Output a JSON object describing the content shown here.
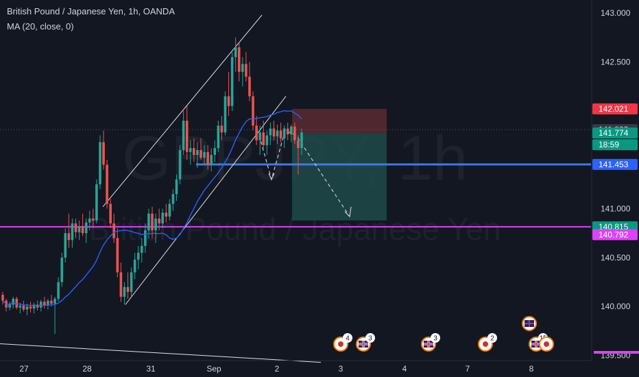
{
  "header": {
    "title": "British Pound / Japanese Yen, 1h, OANDA",
    "indicator": "MA (20, close, 0)"
  },
  "watermark": {
    "symbol": "GBPJPY, 1h",
    "name": "British Pound / Japanese Yen"
  },
  "colors": {
    "background": "#131722",
    "up": "#26a69a",
    "down": "#ef5350",
    "ma": "#2962ff",
    "support_line": "#3d7be0",
    "magenta_line": "#e040fb",
    "target_zone": "#1f4a4a",
    "stop_zone": "#5a2a30",
    "price_badge_blue": "#2962ff",
    "price_badge_red": "#f23645",
    "price_badge_green": "#089981",
    "axis_text": "#d1d4dc"
  },
  "price_axis": {
    "ticks": [
      "143.000",
      "142.500",
      "141.000",
      "140.500",
      "140.000",
      "139.500"
    ]
  },
  "price_badges": {
    "stop": "142.021",
    "last_close": "141.809",
    "current": "141.774",
    "countdown": "18:59",
    "support": "141.453",
    "magenta_upper": "140.815",
    "magenta_lower": "140.792"
  },
  "time_axis": {
    "labels": [
      "27",
      "28",
      "31",
      "Sep",
      "2",
      "3",
      "4",
      "7",
      "8"
    ]
  },
  "event_markers": {
    "counts": [
      "4",
      "3",
      "3",
      "2",
      "15"
    ],
    "icons": [
      "jp-flag-icon",
      "uk-flag-icon",
      "uk-flag-icon",
      "jp-flag-icon",
      "uk-flag-icon"
    ]
  },
  "chart_data": {
    "type": "candlestick",
    "title": "British Pound / Japanese Yen, 1h, OANDA",
    "ylim": [
      139.42,
      143.05
    ],
    "x_labels": [
      "27",
      "28",
      "31",
      "Sep",
      "2",
      "3",
      "4",
      "7",
      "8"
    ],
    "moving_average": {
      "name": "MA (20, close, 0)",
      "period": 20
    },
    "horizontal_levels": [
      141.453,
      140.815,
      140.792
    ],
    "position_tool": {
      "entry": 141.774,
      "stop": 142.021,
      "target": 140.88
    },
    "candles_ohlc": [
      [
        140.12,
        140.15,
        140.02,
        140.06
      ],
      [
        140.06,
        140.08,
        139.95,
        139.99
      ],
      [
        139.99,
        140.05,
        139.96,
        140.02
      ],
      [
        140.02,
        140.1,
        139.98,
        140.08
      ],
      [
        140.08,
        140.1,
        139.97,
        139.99
      ],
      [
        139.99,
        140.04,
        139.93,
        140.01
      ],
      [
        140.01,
        140.06,
        139.95,
        139.97
      ],
      [
        139.97,
        140.03,
        139.91,
        140.0
      ],
      [
        140.0,
        140.05,
        139.94,
        139.98
      ],
      [
        139.98,
        140.04,
        139.93,
        140.02
      ],
      [
        140.02,
        140.06,
        139.96,
        139.99
      ],
      [
        139.99,
        140.07,
        139.95,
        140.05
      ],
      [
        140.05,
        140.1,
        139.98,
        140.01
      ],
      [
        140.01,
        140.08,
        139.97,
        140.06
      ],
      [
        140.06,
        140.12,
        140.0,
        140.03
      ],
      [
        140.03,
        140.1,
        139.72,
        140.08
      ],
      [
        140.08,
        140.3,
        140.05,
        140.25
      ],
      [
        140.25,
        140.55,
        140.2,
        140.5
      ],
      [
        140.5,
        140.8,
        140.45,
        140.75
      ],
      [
        140.75,
        140.95,
        140.6,
        140.68
      ],
      [
        140.68,
        140.9,
        140.6,
        140.85
      ],
      [
        140.85,
        140.9,
        140.7,
        140.76
      ],
      [
        140.76,
        140.88,
        140.68,
        140.82
      ],
      [
        140.82,
        140.95,
        140.72,
        140.75
      ],
      [
        140.75,
        140.9,
        140.65,
        140.86
      ],
      [
        140.86,
        140.98,
        140.78,
        140.9
      ],
      [
        140.9,
        141.0,
        140.8,
        140.88
      ],
      [
        140.88,
        141.3,
        140.85,
        141.25
      ],
      [
        141.25,
        141.75,
        141.2,
        141.68
      ],
      [
        141.68,
        141.8,
        141.4,
        141.45
      ],
      [
        141.45,
        141.5,
        141.0,
        141.05
      ],
      [
        141.05,
        141.1,
        140.8,
        140.85
      ],
      [
        140.85,
        140.95,
        140.65,
        140.7
      ],
      [
        140.7,
        140.8,
        140.3,
        140.35
      ],
      [
        140.35,
        140.45,
        140.05,
        140.1
      ],
      [
        140.1,
        140.25,
        140.02,
        140.2
      ],
      [
        140.2,
        140.35,
        140.08,
        140.15
      ],
      [
        140.15,
        140.4,
        140.1,
        140.35
      ],
      [
        140.35,
        140.55,
        140.28,
        140.48
      ],
      [
        140.48,
        140.62,
        140.38,
        140.55
      ],
      [
        140.55,
        140.7,
        140.45,
        140.62
      ],
      [
        140.62,
        140.85,
        140.55,
        140.78
      ],
      [
        140.78,
        141.0,
        140.7,
        140.95
      ],
      [
        140.95,
        141.02,
        140.7,
        140.78
      ],
      [
        140.78,
        140.95,
        140.65,
        140.9
      ],
      [
        140.9,
        141.0,
        140.78,
        140.85
      ],
      [
        140.85,
        141.0,
        140.8,
        140.96
      ],
      [
        140.96,
        141.05,
        140.86,
        140.92
      ],
      [
        140.92,
        141.1,
        140.88,
        141.05
      ],
      [
        141.05,
        141.2,
        140.98,
        141.15
      ],
      [
        141.15,
        141.35,
        141.08,
        141.3
      ],
      [
        141.3,
        141.65,
        141.25,
        141.6
      ],
      [
        141.6,
        142.0,
        141.55,
        141.9
      ],
      [
        141.9,
        142.05,
        141.5,
        141.58
      ],
      [
        141.58,
        141.7,
        141.45,
        141.62
      ],
      [
        141.62,
        141.72,
        141.48,
        141.55
      ],
      [
        141.55,
        141.68,
        141.42,
        141.6
      ],
      [
        141.6,
        141.72,
        141.5,
        141.52
      ],
      [
        141.52,
        141.65,
        141.45,
        141.58
      ],
      [
        141.58,
        141.65,
        141.4,
        141.45
      ],
      [
        141.45,
        141.62,
        141.38,
        141.55
      ],
      [
        141.55,
        141.7,
        141.48,
        141.62
      ],
      [
        141.62,
        141.9,
        141.58,
        141.85
      ],
      [
        141.85,
        141.95,
        141.7,
        141.78
      ],
      [
        141.78,
        142.2,
        141.75,
        142.15
      ],
      [
        142.15,
        142.4,
        141.95,
        142.05
      ],
      [
        142.05,
        142.6,
        142.0,
        142.55
      ],
      [
        142.55,
        142.75,
        142.4,
        142.65
      ],
      [
        142.65,
        142.7,
        142.3,
        142.4
      ],
      [
        142.4,
        142.55,
        142.25,
        142.48
      ],
      [
        142.48,
        142.6,
        142.3,
        142.35
      ],
      [
        142.35,
        142.5,
        142.1,
        142.15
      ],
      [
        142.15,
        142.2,
        141.8,
        141.85
      ],
      [
        141.85,
        141.95,
        141.65,
        141.7
      ],
      [
        141.7,
        141.85,
        141.55,
        141.78
      ],
      [
        141.78,
        141.9,
        141.62,
        141.65
      ],
      [
        141.65,
        141.8,
        141.55,
        141.75
      ],
      [
        141.75,
        141.88,
        141.65,
        141.82
      ],
      [
        141.82,
        141.9,
        141.7,
        141.74
      ],
      [
        141.74,
        141.86,
        141.66,
        141.8
      ],
      [
        141.8,
        141.88,
        141.68,
        141.72
      ],
      [
        141.72,
        141.85,
        141.62,
        141.82
      ],
      [
        141.82,
        141.88,
        141.7,
        141.76
      ],
      [
        141.76,
        141.86,
        141.68,
        141.84
      ],
      [
        141.84,
        141.88,
        141.66,
        141.7
      ],
      [
        141.7,
        141.75,
        141.35,
        141.62
      ],
      [
        141.62,
        141.82,
        141.55,
        141.78
      ]
    ]
  }
}
